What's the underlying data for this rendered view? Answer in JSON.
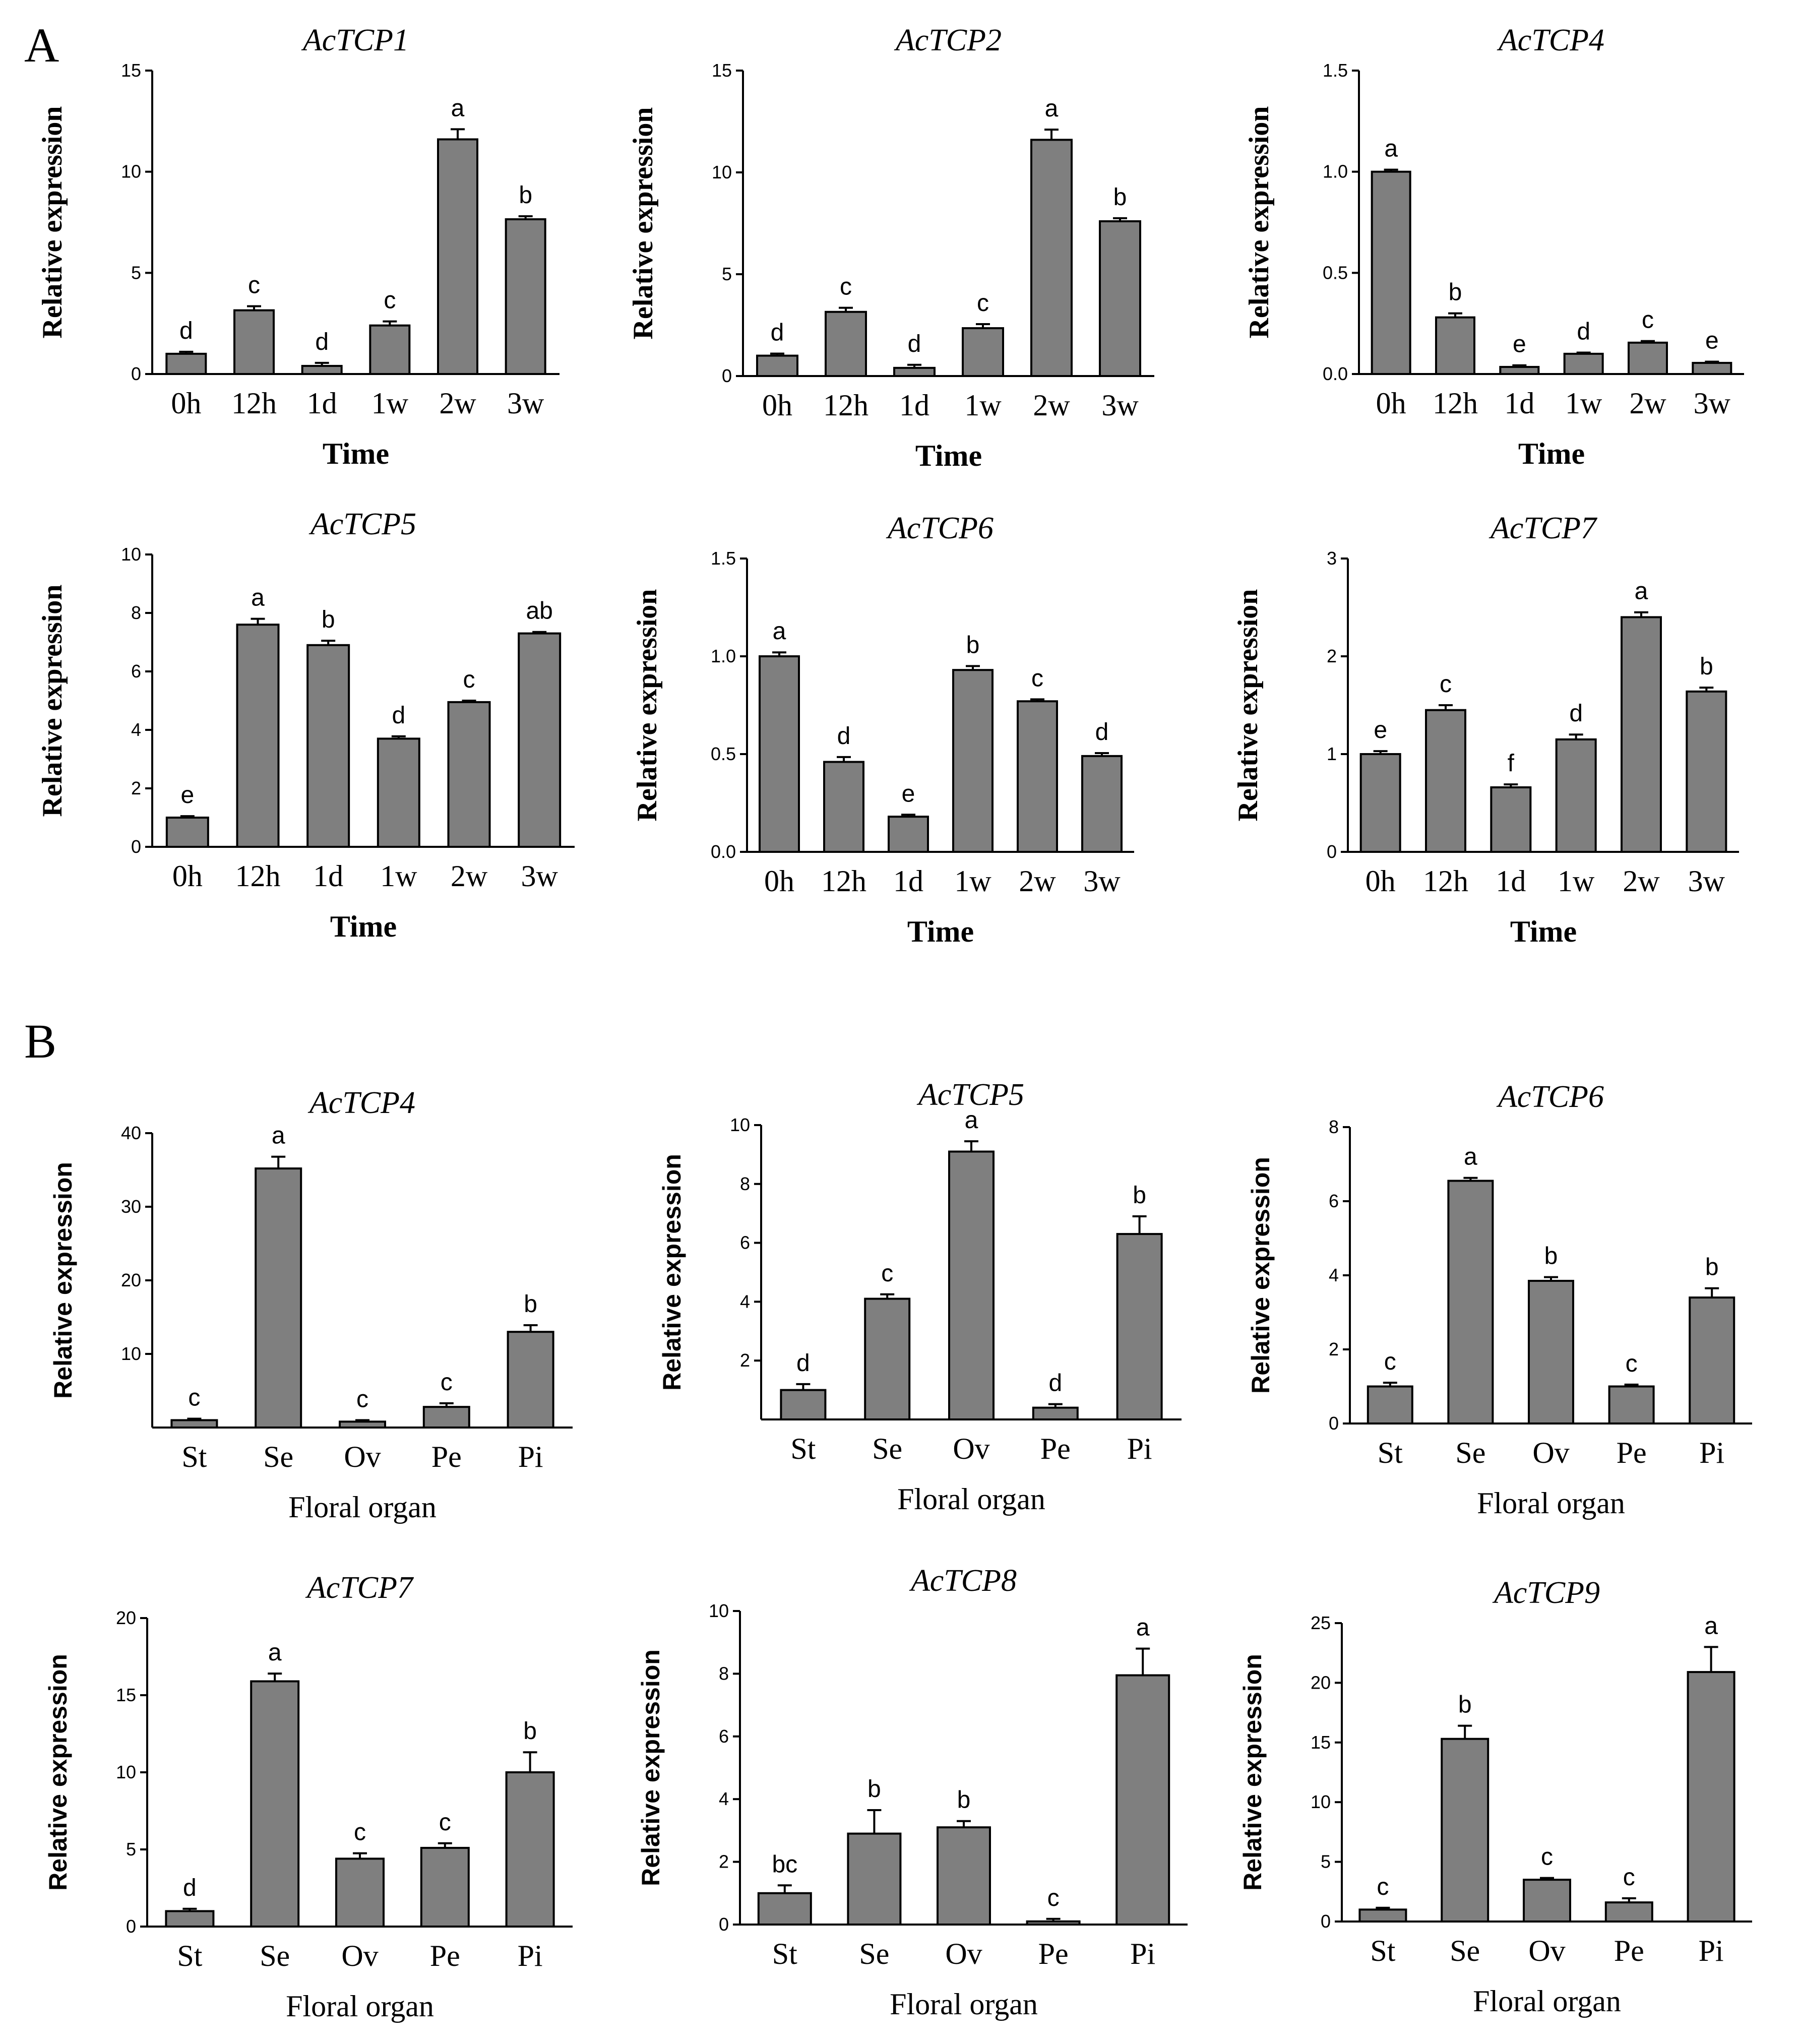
{
  "panels": [
    {
      "letter": "A"
    },
    {
      "letter": "B"
    }
  ],
  "chart_data": [
    {
      "type": "bar",
      "panel": "A",
      "title": "AcTCP1",
      "xlabel": "Time",
      "ylabel": "Relative expression",
      "categories": [
        "0h",
        "12h",
        "1d",
        "1w",
        "2w",
        "3w"
      ],
      "values": [
        1.0,
        3.15,
        0.4,
        2.4,
        11.6,
        7.65
      ],
      "errors": [
        0.1,
        0.2,
        0.15,
        0.2,
        0.5,
        0.15
      ],
      "labels": [
        "d",
        "c",
        "d",
        "c",
        "a",
        "b"
      ],
      "ylim": [
        0,
        15
      ],
      "yticks": [
        0,
        5,
        10,
        15
      ],
      "yticklabels": [
        "0",
        "5",
        "10",
        "15"
      ]
    },
    {
      "type": "bar",
      "panel": "A",
      "title": "AcTCP2",
      "xlabel": "Time",
      "ylabel": "Relative expression",
      "categories": [
        "0h",
        "12h",
        "1d",
        "1w",
        "2w",
        "3w"
      ],
      "values": [
        1.0,
        3.15,
        0.4,
        2.35,
        11.6,
        7.6
      ],
      "errors": [
        0.1,
        0.2,
        0.15,
        0.2,
        0.5,
        0.15
      ],
      "labels": [
        "d",
        "c",
        "d",
        "c",
        "a",
        "b"
      ],
      "ylim": [
        0,
        15
      ],
      "yticks": [
        0,
        5,
        10,
        15
      ],
      "yticklabels": [
        "0",
        "5",
        "10",
        "15"
      ]
    },
    {
      "type": "bar",
      "panel": "A",
      "title": "AcTCP4",
      "xlabel": "Time",
      "ylabel": "Relative expression",
      "categories": [
        "0h",
        "12h",
        "1d",
        "1w",
        "2w",
        "3w"
      ],
      "values": [
        1.0,
        0.28,
        0.035,
        0.1,
        0.155,
        0.055
      ],
      "errors": [
        0.01,
        0.02,
        0.008,
        0.006,
        0.008,
        0.006
      ],
      "labels": [
        "a",
        "b",
        "e",
        "d",
        "c",
        "e"
      ],
      "ylim": [
        0,
        1.5
      ],
      "yticks": [
        0,
        0.5,
        1.0,
        1.5
      ],
      "yticklabels": [
        "0.0",
        "0.5",
        "1.0",
        "1.5"
      ]
    },
    {
      "type": "bar",
      "panel": "A",
      "title": "AcTCP5",
      "xlabel": "Time",
      "ylabel": "Relative expression",
      "categories": [
        "0h",
        "12h",
        "1d",
        "1w",
        "2w",
        "3w"
      ],
      "values": [
        1.0,
        7.6,
        6.9,
        3.7,
        4.95,
        7.3
      ],
      "errors": [
        0.05,
        0.2,
        0.15,
        0.08,
        0.05,
        0.05
      ],
      "labels": [
        "e",
        "a",
        "b",
        "d",
        "c",
        "ab"
      ],
      "ylim": [
        0,
        10
      ],
      "yticks": [
        0,
        2,
        4,
        6,
        8,
        10
      ],
      "yticklabels": [
        "0",
        "2",
        "4",
        "6",
        "8",
        "10"
      ]
    },
    {
      "type": "bar",
      "panel": "A",
      "title": "AcTCP6",
      "xlabel": "Time",
      "ylabel": "Relative expression",
      "categories": [
        "0h",
        "12h",
        "1d",
        "1w",
        "2w",
        "3w"
      ],
      "values": [
        1.0,
        0.46,
        0.18,
        0.93,
        0.77,
        0.49
      ],
      "errors": [
        0.02,
        0.025,
        0.01,
        0.02,
        0.01,
        0.015
      ],
      "labels": [
        "a",
        "d",
        "e",
        "b",
        "c",
        "d"
      ],
      "ylim": [
        0,
        1.5
      ],
      "yticks": [
        0,
        0.5,
        1.0,
        1.5
      ],
      "yticklabels": [
        "0.0",
        "0.5",
        "1.0",
        "1.5"
      ]
    },
    {
      "type": "bar",
      "panel": "A",
      "title": "AcTCP7",
      "xlabel": "Time",
      "ylabel": "Relative expression",
      "categories": [
        "0h",
        "12h",
        "1d",
        "1w",
        "2w",
        "3w"
      ],
      "values": [
        1.0,
        1.45,
        0.66,
        1.15,
        2.4,
        1.64
      ],
      "errors": [
        0.03,
        0.05,
        0.03,
        0.05,
        0.05,
        0.04
      ],
      "labels": [
        "e",
        "c",
        "f",
        "d",
        "a",
        "b"
      ],
      "ylim": [
        0,
        3
      ],
      "yticks": [
        0,
        1,
        2,
        3
      ],
      "yticklabels": [
        "0",
        "1",
        "2",
        "3"
      ]
    },
    {
      "type": "bar",
      "panel": "B",
      "title": "AcTCP4",
      "xlabel": "Floral organ",
      "ylabel": "Relative expression",
      "categories": [
        "St",
        "Se",
        "Ov",
        "Pe",
        "Pi"
      ],
      "values": [
        1.0,
        35.2,
        0.8,
        2.8,
        13.0
      ],
      "errors": [
        0.2,
        1.6,
        0.2,
        0.5,
        0.9
      ],
      "labels": [
        "c",
        "a",
        "c",
        "c",
        "b"
      ],
      "ylim": [
        0,
        40
      ],
      "yticks": [
        10,
        20,
        30,
        40
      ],
      "yticklabels": [
        "10",
        "20",
        "30",
        "40"
      ]
    },
    {
      "type": "bar",
      "panel": "B",
      "title": "AcTCP5",
      "xlabel": "Floral organ",
      "ylabel": "Relative expression",
      "categories": [
        "St",
        "Se",
        "Ov",
        "Pe",
        "Pi"
      ],
      "values": [
        1.0,
        4.1,
        9.1,
        0.4,
        6.3
      ],
      "errors": [
        0.2,
        0.15,
        0.35,
        0.12,
        0.6
      ],
      "labels": [
        "d",
        "c",
        "a",
        "d",
        "b"
      ],
      "ylim": [
        0,
        10
      ],
      "yticks": [
        2,
        4,
        6,
        8,
        10
      ],
      "yticklabels": [
        "2",
        "4",
        "6",
        "8",
        "10"
      ]
    },
    {
      "type": "bar",
      "panel": "B",
      "title": "AcTCP6",
      "xlabel": "Floral organ",
      "ylabel": "Relative expression",
      "categories": [
        "St",
        "Se",
        "Ov",
        "Pe",
        "Pi"
      ],
      "values": [
        1.0,
        6.55,
        3.85,
        1.0,
        3.4
      ],
      "errors": [
        0.1,
        0.08,
        0.1,
        0.05,
        0.25
      ],
      "labels": [
        "c",
        "a",
        "b",
        "c",
        "b"
      ],
      "ylim": [
        0,
        8
      ],
      "yticks": [
        0,
        2,
        4,
        6,
        8
      ],
      "yticklabels": [
        "0",
        "2",
        "4",
        "6",
        "8"
      ]
    },
    {
      "type": "bar",
      "panel": "B",
      "title": "AcTCP7",
      "xlabel": "Floral organ",
      "ylabel": "Relative expression",
      "categories": [
        "St",
        "Se",
        "Ov",
        "Pe",
        "Pi"
      ],
      "values": [
        1.0,
        15.9,
        4.4,
        5.1,
        10.0
      ],
      "errors": [
        0.15,
        0.5,
        0.35,
        0.3,
        1.3
      ],
      "labels": [
        "d",
        "a",
        "c",
        "c",
        "b"
      ],
      "ylim": [
        0,
        20
      ],
      "yticks": [
        0,
        5,
        10,
        15,
        20
      ],
      "yticklabels": [
        "0",
        "5",
        "10",
        "15",
        "20"
      ]
    },
    {
      "type": "bar",
      "panel": "B",
      "title": "AcTCP8",
      "xlabel": "Floral organ",
      "ylabel": "Relative expression",
      "categories": [
        "St",
        "Se",
        "Ov",
        "Pe",
        "Pi"
      ],
      "values": [
        1.0,
        2.9,
        3.1,
        0.1,
        7.95
      ],
      "errors": [
        0.25,
        0.75,
        0.2,
        0.08,
        0.85
      ],
      "labels": [
        "bc",
        "b",
        "b",
        "c",
        "a"
      ],
      "ylim": [
        0,
        10
      ],
      "yticks": [
        0,
        2,
        4,
        6,
        8,
        10
      ],
      "yticklabels": [
        "0",
        "2",
        "4",
        "6",
        "8",
        "10"
      ]
    },
    {
      "type": "bar",
      "panel": "B",
      "title": "AcTCP9",
      "xlabel": "Floral organ",
      "ylabel": "Relative expression",
      "categories": [
        "St",
        "Se",
        "Ov",
        "Pe",
        "Pi"
      ],
      "values": [
        1.0,
        15.3,
        3.5,
        1.6,
        20.9
      ],
      "errors": [
        0.15,
        1.1,
        0.15,
        0.35,
        2.1
      ],
      "labels": [
        "c",
        "b",
        "c",
        "c",
        "a"
      ],
      "ylim": [
        0,
        25
      ],
      "yticks": [
        0,
        5,
        10,
        15,
        20,
        25
      ],
      "yticklabels": [
        "0",
        "5",
        "10",
        "15",
        "20",
        "25"
      ]
    }
  ]
}
